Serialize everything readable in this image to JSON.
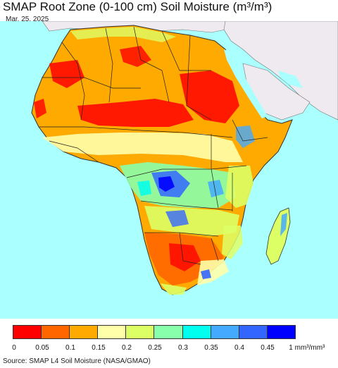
{
  "title": "SMAP Root Zone (0-100 cm) Soil Moisture (m³/m³)",
  "date": "Mar. 25, 2025",
  "source": "Source: SMAP L4 Soil Moisture (NASA/GMAO)",
  "legend": {
    "colors": [
      "#ff0000",
      "#ff6600",
      "#ffaa00",
      "#ffffaa",
      "#ddff66",
      "#88ffaa",
      "#00ffee",
      "#44aaff",
      "#3366ff",
      "#0000ff"
    ],
    "ticks": [
      "0",
      "0.05",
      "0.1",
      "0.15",
      "0.2",
      "0.25",
      "0.3",
      "0.35",
      "0.4",
      "0.45",
      "1"
    ],
    "unit": "mm³/mm³"
  },
  "map": {
    "ocean_color": "#aaffff",
    "outside_land_color": "#eeeaf0"
  }
}
